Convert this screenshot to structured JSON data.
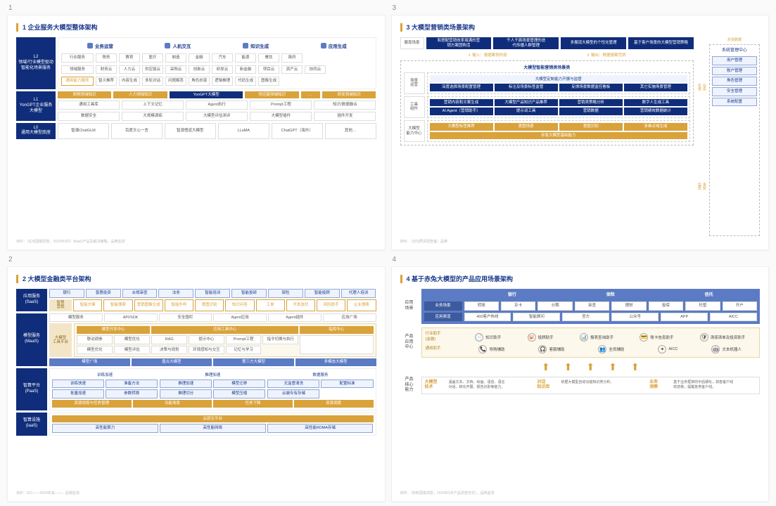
{
  "panels": [
    "1",
    "2",
    "3",
    "4"
  ],
  "colors": {
    "navy": "#0f2d7a",
    "gold": "#d9a23a",
    "lblue": "#5b7bc4",
    "paleblue": "#eef3fd",
    "cream": "#fdf8ec",
    "border": "#dddddd"
  },
  "p1": {
    "title": "1 企业服务大模型整体架构",
    "L2label": "L2\n领域/行业模型驱动\n智能化场景服务",
    "cats": [
      "业务运营",
      "人机交互",
      "知识生成",
      "应用生成"
    ],
    "rowLabels": [
      "行业服务",
      "领域服务",
      "通用能力服务"
    ],
    "row1": [
      "税务",
      "教育",
      "医疗",
      "制造",
      "金融",
      "汽车",
      "能源",
      "餐饮",
      "政府"
    ],
    "row2": [
      "财务云",
      "人力云",
      "供应链云",
      "采购云",
      "创新云",
      "研发云",
      "新金融",
      "项目云",
      "资产云",
      "协同云"
    ],
    "row3": [
      "智义推荐",
      "内容生成",
      "多轮对话",
      "问题解答",
      "角色扮演",
      "逻辑推理",
      "代码生成",
      "图像生成"
    ],
    "L1label": "L1\nYonGPT企业服务\n大模型",
    "L1top": [
      "财税领域知识",
      "人力领域知识",
      "YonGPT大模型",
      "供应链领域知识",
      "…",
      "研发领域知识"
    ],
    "L1grid": [
      "通用工具库",
      "上下文记忆",
      "Agent执行",
      "Prompt工程",
      "知识/数据融合",
      "数据安全",
      "大规模调练",
      "大模型评估测评",
      "大模型插件",
      "插件开发"
    ],
    "L0label": "L0\n通用大模型底座",
    "L0row": [
      "智谱ChatGLM",
      "百度文心一言",
      "智源悟道大模型",
      "LLaMA",
      "ChatGPT（海外）",
      "其他…"
    ],
    "footnote": "资料：（在线国模调查，2024年9月）MaaS产品及解决策略，品牌监测"
  },
  "p2": {
    "title": "2 大模型金融类平台架构",
    "saasLabel": "应用服务\n(SaaS)",
    "saasTop": [
      "银行",
      "普惠投资",
      "合规审查",
      "法务",
      "智能培训",
      "智能投研",
      "保险",
      "智能投顾",
      "代理人培训"
    ],
    "saasSub": "智慧\n营销",
    "saasRow": [
      "智能文案",
      "智能搜索",
      "营销图像生成",
      "智能外呼",
      "意图识别",
      "知识问答",
      "工单",
      "开发选代",
      "风险助手",
      "企业搜索"
    ],
    "maasLabel": "模型服务\n(MaaS)",
    "maasHdr": [
      "模型服务",
      "API/SDK",
      "安全围栏",
      "Agent应用",
      "Agent插件",
      "应用广场"
    ],
    "maasPlat": "大模型\n工具平台",
    "maasColA": "模型开发中心",
    "maasColB": "应用工具中心",
    "maasColC": "指挥中心",
    "maasA": [
      "联动调参",
      "模型优化",
      "模型优化",
      "模型评估"
    ],
    "maasB": [
      "RAG",
      "提示中心",
      "Prompt工程",
      "指令切换与执行",
      "决策与规划",
      "环境感知与交互",
      "记忆与学习"
    ],
    "maasModels": [
      "模型广场",
      "盘古大模型",
      "第三方大模型",
      "多模态大模型"
    ],
    "paasLabel": "智算平台\n(PaaS)",
    "paasCols": [
      "训练加速",
      "推理加速",
      "数据服务"
    ],
    "paasA": [
      "训练快速",
      "准备方法",
      "批量加速",
      "参数转换"
    ],
    "paasB": [
      "推理加速",
      "模型迁移",
      "推理切分",
      "模型压缩"
    ],
    "paasC": [
      "无监督清洗",
      "配置标准",
      "云端专有存储"
    ],
    "paasBot": [
      "资源规规与任务管理",
      "功能场景",
      "任务下降",
      "资源调度"
    ],
    "iaasLabel": "智算设施\n(IaaS)",
    "iaasTitle": "云原生平台",
    "iaasRow": [
      "高性能算力",
      "高性能网络",
      "高性能RDMA存储"
    ],
    "footnote": "资料：IDC——2024年来——，品牌监测"
  },
  "p3": {
    "title": "3 大模型营销类场景架构",
    "topLabel": "展现场景",
    "topBlocks": [
      "和搭配营销效率填满的营\n销方案团购活",
      "千人千面场景管理的迭\n代传播人群管理",
      "多展现大模型的个性化管理",
      "基于客户场景的大模型营销策略"
    ],
    "arrow1": "输入：报据案例内容",
    "arrow2": "输出：根据报案范例",
    "rightLabel": "反馈数据",
    "dashTitle": "大模型智能营销类场景类",
    "sub1Label": "场景\n运营",
    "sub1Title": "大模型定制能力开展与监管",
    "sub1Row": [
      "深度选择场景配置管理",
      "标注及场景标签监管",
      "反馈场景数据监控看板",
      "其它实施场景管理"
    ],
    "sub2Label": "工具\n组件",
    "sub2R1": [
      "营销内容和文案生成",
      "大模型产品知识产品推荐",
      "营销类策略分析",
      "数字人生成工具"
    ],
    "sub2R2": [
      "AI Agent（营销助手）",
      "提示词工具",
      "营销数据",
      "营销绩效数据统计"
    ],
    "sub3Label": "大模型\n能力中心",
    "sub3R1": [
      "大模型标签推荐",
      "意图场景",
      "意图识别",
      "多维点域生成"
    ],
    "sub3R2": "赤兔大模型基础能力",
    "opsTitle": "系统管理中心",
    "ops": [
      "用户管理",
      "账户管理",
      "角色管理",
      "安全管理",
      "系统配置"
    ],
    "sideA": "业务\n反馈",
    "sideB": "系统\n监控",
    "footnote": "资料：（对内质调调查备）品牌"
  },
  "p4": {
    "title": "4 基于赤兔大模型的产品应用场景架构",
    "secA": "应用\n场景",
    "colHdrs": [
      "",
      "银行",
      "保险",
      "信托"
    ],
    "sceneLabel": "业务场景",
    "sceneRow": [
      "转账",
      "存卡",
      "分期",
      "审查",
      "理财",
      "投保",
      "打卡",
      "名额",
      "托管",
      "开户"
    ],
    "chanLabel": "应用渠道",
    "chanRow": [
      "400客户热线",
      "智能顾问",
      "官方",
      "公众号",
      "APP",
      "",
      "AICC"
    ],
    "secB": "产品\n应用\n中心",
    "ctrLabelA": "行业助手\n(金融)",
    "ctrA": [
      "知识助手",
      "投顾助手",
      "报表查询助手",
      "账卡信息助手",
      "清保清单及投资助手"
    ],
    "ctrLabelB": "通用助手",
    "ctrB": [
      "导购辅助",
      "客服辅助",
      "全员辅助",
      "AICC",
      "文本机器人"
    ],
    "secC": "产品\n核心\n能力",
    "core": [
      {
        "t": "大模型\n技术",
        "d": "涵盖文本、文档、绘画、语音、语言\n对话、转化开展、报告识别等能力。"
      },
      {
        "t": "对话\n知识库",
        "d": "依据大模型自动功能知识类分析。"
      },
      {
        "t": "业务\n洞察",
        "d": "基于业务框架的中后期化，如各客户线\n效迭移，提醒各类客户线。"
      }
    ],
    "footnote": "资料：（财新国模调查，2024年9月产品调查样式），品牌监测"
  }
}
